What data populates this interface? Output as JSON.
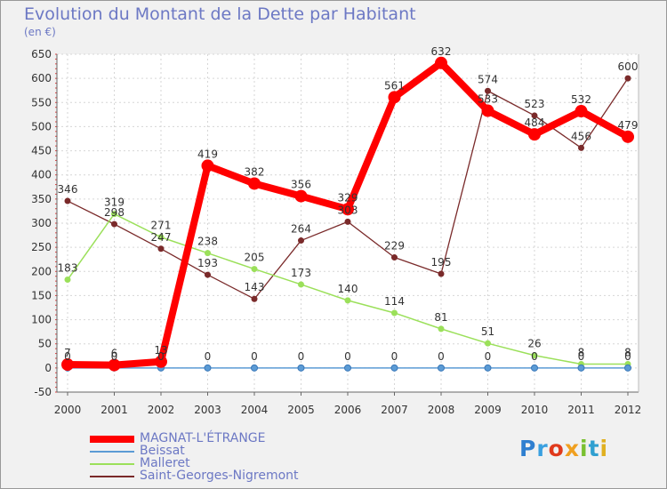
{
  "title": "Evolution du Montant de la Dette par Habitant",
  "unit": "(en €)",
  "logo": {
    "text": "Proxiti",
    "colors": [
      "#2f7fd0",
      "#3aa0e0",
      "#e03a1c",
      "#f0a020",
      "#7ac030",
      "#2f9fd0",
      "#e0b020"
    ]
  },
  "chart_data": {
    "type": "line",
    "title": "Evolution du Montant de la Dette par Habitant",
    "ylabel": "(en €)",
    "x": [
      "2000",
      "2001",
      "2002",
      "2003",
      "2004",
      "2005",
      "2006",
      "2007",
      "2008",
      "2009",
      "2010",
      "2011",
      "2012"
    ],
    "ylim": [
      -50,
      650
    ],
    "yticks": [
      -50,
      0,
      50,
      100,
      150,
      200,
      250,
      300,
      350,
      400,
      450,
      500,
      550,
      600,
      650
    ],
    "grid": true,
    "series": [
      {
        "name": "MAGNAT-L'ÉTRANGE",
        "color": "#ff0000",
        "values": [
          7,
          6,
          13,
          419,
          382,
          356,
          329,
          561,
          632,
          533,
          484,
          532,
          479
        ]
      },
      {
        "name": "Beissat",
        "color": "#5b9bd5",
        "values": [
          0,
          0,
          0,
          0,
          0,
          0,
          0,
          0,
          0,
          0,
          0,
          0,
          0
        ]
      },
      {
        "name": "Malleret",
        "color": "#9be05a",
        "values": [
          183,
          319,
          271,
          238,
          205,
          173,
          140,
          114,
          81,
          51,
          26,
          8,
          8
        ]
      },
      {
        "name": "Saint-Georges-Nigremont",
        "color": "#7a2a2a",
        "values": [
          346,
          298,
          247,
          193,
          143,
          264,
          303,
          229,
          195,
          574,
          523,
          456,
          600
        ]
      }
    ]
  }
}
